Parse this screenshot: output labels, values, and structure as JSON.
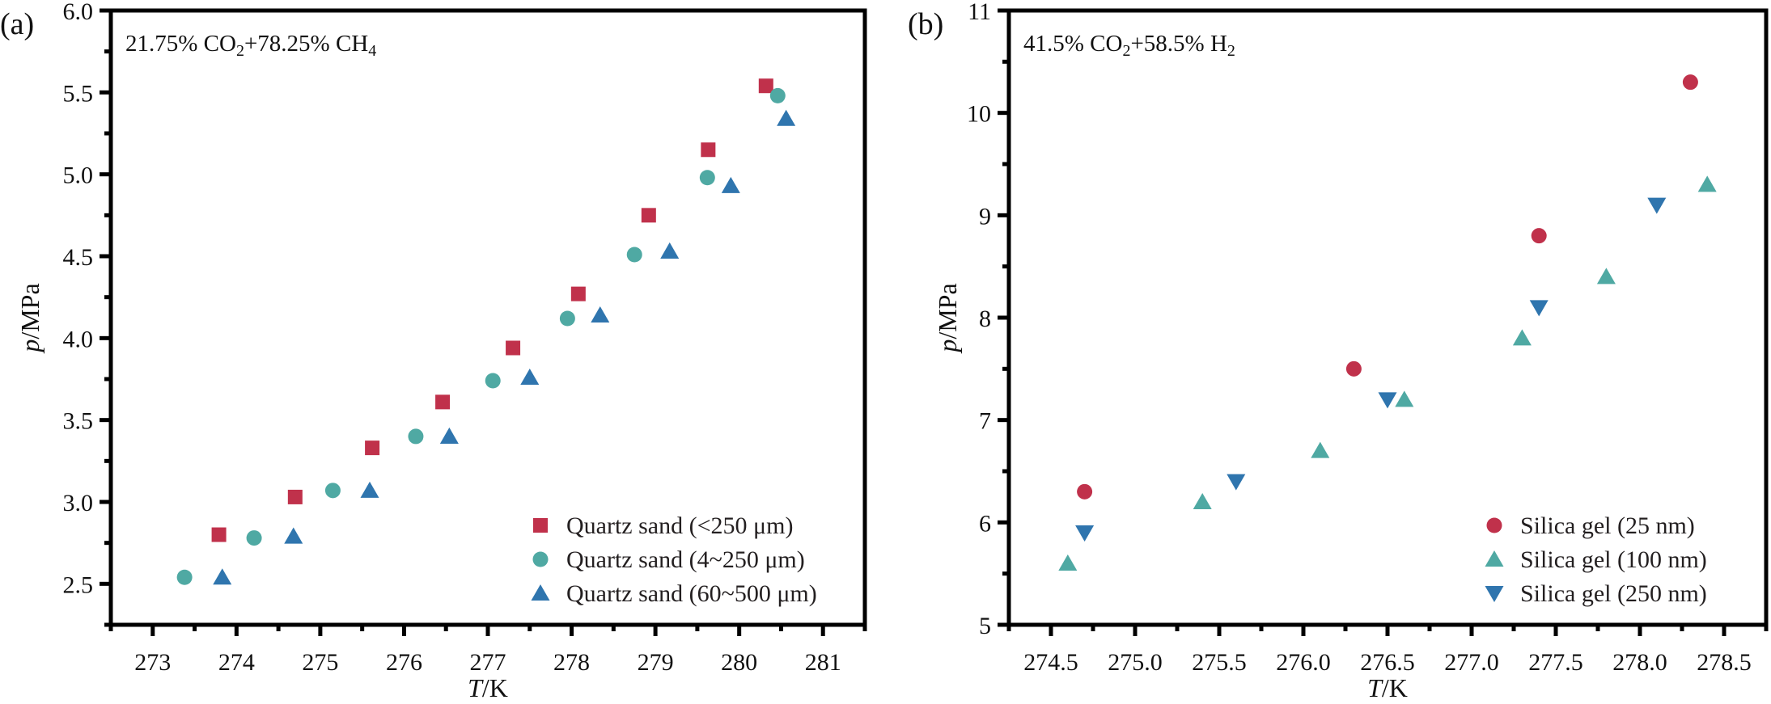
{
  "chart_data": [
    {
      "type": "scatter",
      "panel_label": "(a)",
      "annotation": {
        "parts": [
          [
            "21.75% CO",
            ""
          ],
          [
            "2",
            "sub"
          ],
          [
            "+78.25% CH",
            ""
          ],
          [
            "4",
            "sub"
          ]
        ]
      },
      "xlabel": {
        "italic": "T",
        "rest": "/K"
      },
      "ylabel": {
        "italic": "p",
        "rest": "/MPa"
      },
      "xlim": [
        272.5,
        281.5
      ],
      "ylim": [
        2.25,
        6.0
      ],
      "xticks": [
        273,
        274,
        275,
        276,
        277,
        278,
        279,
        280,
        281
      ],
      "xtick_labels": [
        "273",
        "274",
        "275",
        "276",
        "277",
        "278",
        "279",
        "280",
        "281"
      ],
      "xminor": [
        272.5,
        273.5,
        274.5,
        275.5,
        276.5,
        277.5,
        278.5,
        279.5,
        280.5,
        281.5
      ],
      "yticks": [
        2.5,
        3.0,
        3.5,
        4.0,
        4.5,
        5.0,
        5.5,
        6.0
      ],
      "ytick_labels": [
        "2.5",
        "3.0",
        "3.5",
        "4.0",
        "4.5",
        "5.0",
        "5.5",
        "6.0"
      ],
      "yminor": [
        2.25,
        2.75,
        3.25,
        3.75,
        4.25,
        4.75,
        5.25,
        5.75
      ],
      "grid": false,
      "legend_position": "bottom-right",
      "series": [
        {
          "name": "Quartz sand (<250 μm)",
          "marker": "square",
          "color": "#C0314B",
          "x": [
            273.79,
            274.7,
            275.62,
            276.46,
            277.3,
            278.08,
            278.92,
            279.63,
            280.32
          ],
          "y": [
            2.8,
            3.03,
            3.33,
            3.61,
            3.94,
            4.27,
            4.75,
            5.15,
            5.54
          ]
        },
        {
          "name": "Quartz sand (4~250 μm)",
          "marker": "circle",
          "color": "#4FA9A3",
          "x": [
            273.38,
            274.21,
            275.15,
            276.14,
            277.06,
            277.95,
            278.75,
            279.62,
            280.46
          ],
          "y": [
            2.54,
            2.78,
            3.07,
            3.4,
            3.74,
            4.12,
            4.51,
            4.98,
            5.48
          ]
        },
        {
          "name": "Quartz sand (60~500 μm)",
          "marker": "triangle-up",
          "color": "#2F75AE",
          "x": [
            273.83,
            274.68,
            275.59,
            276.54,
            277.5,
            278.34,
            279.17,
            279.9,
            280.56
          ],
          "y": [
            2.54,
            2.79,
            3.07,
            3.4,
            3.76,
            4.14,
            4.53,
            4.93,
            5.34
          ]
        }
      ]
    },
    {
      "type": "scatter",
      "panel_label": "(b)",
      "annotation": {
        "parts": [
          [
            "41.5% CO",
            ""
          ],
          [
            "2",
            "sub"
          ],
          [
            "+58.5% H",
            ""
          ],
          [
            "2",
            "sub"
          ]
        ]
      },
      "xlabel": {
        "italic": "T",
        "rest": "/K"
      },
      "ylabel": {
        "italic": "p",
        "rest": "/MPa"
      },
      "xlim": [
        274.25,
        278.75
      ],
      "ylim": [
        5,
        11
      ],
      "xticks": [
        274.5,
        275.0,
        275.5,
        276.0,
        276.5,
        277.0,
        277.5,
        278.0,
        278.5
      ],
      "xtick_labels": [
        "274.5",
        "275.0",
        "275.5",
        "276.0",
        "276.5",
        "277.0",
        "277.5",
        "278.0",
        "278.5"
      ],
      "xminor": [
        274.25,
        274.75,
        275.25,
        275.75,
        276.25,
        276.75,
        277.25,
        277.75,
        278.25,
        278.75
      ],
      "yticks": [
        5,
        6,
        7,
        8,
        9,
        10,
        11
      ],
      "ytick_labels": [
        "5",
        "6",
        "7",
        "8",
        "9",
        "10",
        "11"
      ],
      "yminor": [
        5.5,
        6.5,
        7.5,
        8.5,
        9.5,
        10.5
      ],
      "grid": false,
      "legend_position": "bottom-right",
      "series": [
        {
          "name": "Silica gel (25 nm)",
          "marker": "circle",
          "color": "#C0314B",
          "x": [
            274.7,
            276.3,
            277.4,
            278.3
          ],
          "y": [
            6.3,
            7.5,
            8.8,
            10.3
          ]
        },
        {
          "name": "Silica gel (100 nm)",
          "marker": "triangle-up",
          "color": "#4FA9A3",
          "x": [
            274.6,
            275.4,
            276.1,
            276.6,
            277.3,
            277.8,
            278.4
          ],
          "y": [
            5.6,
            6.2,
            6.7,
            7.2,
            7.8,
            8.4,
            9.3
          ]
        },
        {
          "name": "Silica gel (250 nm)",
          "marker": "triangle-down",
          "color": "#2F75AE",
          "x": [
            274.7,
            275.6,
            276.5,
            277.4,
            278.1
          ],
          "y": [
            5.9,
            6.4,
            7.2,
            8.1,
            9.1
          ]
        }
      ]
    }
  ]
}
